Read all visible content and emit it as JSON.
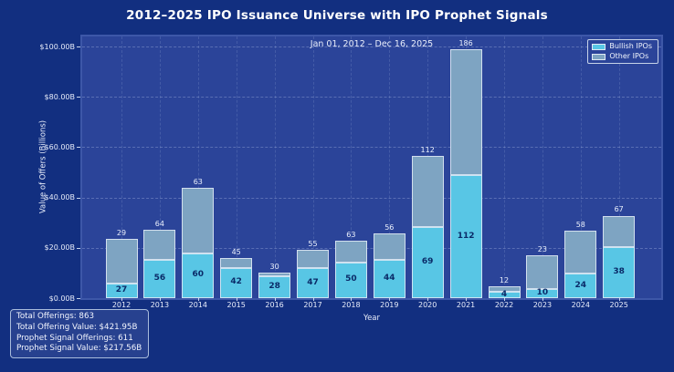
{
  "colors": {
    "figure_background": "#122f80",
    "axes_background": "#2b4499",
    "bullish_bar": "#58c6e5",
    "other_bar": "#7ea4c2",
    "bar_edge": "#e0eaf6",
    "text": "#ffffff",
    "inner_label_text": "#0a2a68"
  },
  "info_box": {
    "lines": [
      "Total Offerings: 863",
      "Total Offering Value: $421.95B",
      "Prophet Signal Offerings: 611",
      "Prophet Signal Value: $217.56B"
    ]
  },
  "chart_data": {
    "type": "bar",
    "stacked": true,
    "title": "2012–2025 IPO Issuance Universe with IPO Prophet Signals",
    "subtitle": "Jan 01, 2012 – Dec 16, 2025",
    "xlabel": "Year",
    "ylabel": "Value of Offers (Billions)",
    "units": "USD billions (bar heights estimated from axis)",
    "grid": true,
    "legend_position": "upper right",
    "ylim": [
      0,
      104
    ],
    "y_ticks": [
      {
        "value": 0,
        "label": "$0.00B"
      },
      {
        "value": 20,
        "label": "$20.00B"
      },
      {
        "value": 40,
        "label": "$40.00B"
      },
      {
        "value": 60,
        "label": "$60.00B"
      },
      {
        "value": 80,
        "label": "$80.00B"
      },
      {
        "value": 100,
        "label": "$100.00B"
      }
    ],
    "categories": [
      2012,
      2013,
      2014,
      2015,
      2016,
      2017,
      2018,
      2019,
      2020,
      2021,
      2022,
      2023,
      2024,
      2025
    ],
    "series": [
      {
        "name": "Bullish IPOs",
        "color": "#58c6e5",
        "values_billions": [
          5.8,
          15.4,
          17.8,
          12.1,
          8.8,
          11.9,
          14.3,
          15.3,
          28.3,
          48.8,
          2.4,
          3.6,
          9.7,
          20.4
        ],
        "count_labels": [
          27,
          56,
          60,
          42,
          28,
          47,
          50,
          44,
          69,
          112,
          4,
          10,
          24,
          38
        ]
      },
      {
        "name": "Other IPOs",
        "color": "#7ea4c2",
        "values_billions": [
          17.8,
          11.8,
          26.0,
          3.7,
          1.3,
          7.3,
          8.5,
          10.5,
          28.4,
          50.1,
          2.4,
          13.4,
          17.0,
          12.4
        ]
      }
    ],
    "total_count_labels": [
      29,
      64,
      63,
      45,
      30,
      55,
      63,
      56,
      112,
      186,
      12,
      23,
      58,
      67
    ]
  }
}
